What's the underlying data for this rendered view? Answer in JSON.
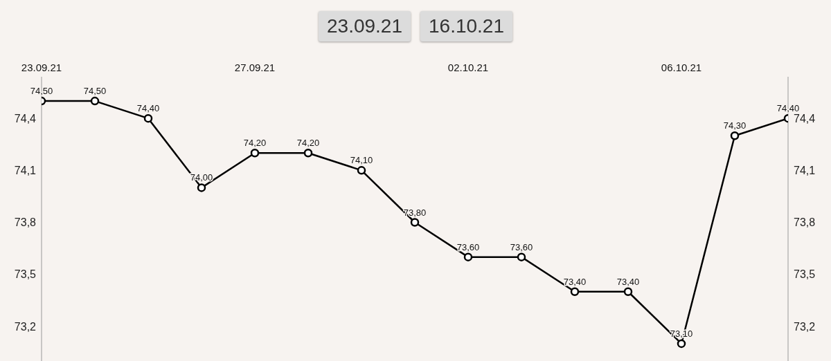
{
  "chart_data": {
    "type": "line",
    "annotations": [
      "23.09.21",
      "16.10.21"
    ],
    "categories": [
      "23.09.21",
      null,
      null,
      null,
      "27.09.21",
      null,
      null,
      null,
      "02.10.21",
      null,
      null,
      null,
      "06.10.21",
      null,
      null
    ],
    "series": [
      {
        "color": "#000000",
        "values": [
          74.5,
          74.5,
          74.4,
          74.0,
          74.2,
          74.2,
          74.1,
          73.8,
          73.6,
          73.6,
          73.4,
          73.4,
          73.1,
          74.3,
          74.4
        ],
        "value_labels": [
          "74,50",
          "74,50",
          "74,40",
          "74,00",
          "74,20",
          "74,20",
          "74,10",
          "73,80",
          "73,60",
          "73,60",
          "73,40",
          "73,40",
          "73,10",
          "74,30",
          "74,40"
        ]
      }
    ],
    "ylim": [
      73.0,
      74.64
    ],
    "yticks": [
      {
        "value": 73.2,
        "label": "73,2"
      },
      {
        "value": 73.5,
        "label": "73,5"
      },
      {
        "value": 73.8,
        "label": "73,8"
      },
      {
        "value": 74.1,
        "label": "74,1"
      },
      {
        "value": 74.4,
        "label": "74,4"
      }
    ],
    "y2lim": [
      73.0,
      74.64
    ],
    "y2ticks": [
      {
        "value": 73.2,
        "label": "73,2"
      },
      {
        "value": 73.5,
        "label": "73,5"
      },
      {
        "value": 73.8,
        "label": "73,8"
      },
      {
        "value": 74.1,
        "label": "74,1"
      },
      {
        "value": 74.4,
        "label": "74,4"
      }
    ],
    "marker": "circle",
    "line_style": "solid"
  }
}
